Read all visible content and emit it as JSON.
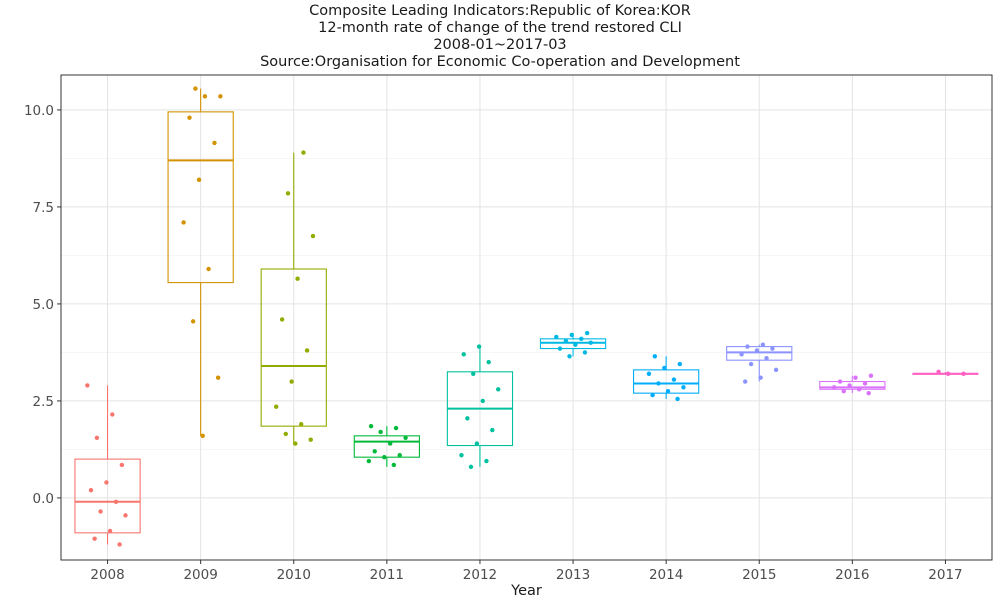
{
  "chart_data": {
    "type": "box",
    "title_lines": [
      "Composite Leading Indicators:Republic of Korea:KOR",
      "12-month rate of change of the trend restored CLI",
      "2008-01~2017-03",
      "Source:Organisation for Economic Co-operation and Development"
    ],
    "xlabel": "Year",
    "ylabel": "",
    "ylim": [
      -1.6,
      10.9
    ],
    "yticks": [
      0,
      2.5,
      5,
      7.5,
      10
    ],
    "ytick_labels": [
      "0.0",
      "2.5",
      "5.0",
      "7.5",
      "10.0"
    ],
    "grid": true,
    "categories": [
      "2008",
      "2009",
      "2010",
      "2011",
      "2012",
      "2013",
      "2014",
      "2015",
      "2016",
      "2017"
    ],
    "colors": [
      "#F8766D",
      "#D39200",
      "#93AA00",
      "#00BA38",
      "#00C19F",
      "#00B9E3",
      "#00ADFA",
      "#8B93FF",
      "#DB72FB",
      "#FF61C3"
    ],
    "boxes": [
      {
        "category": "2008",
        "q1": -0.9,
        "median": -0.1,
        "q3": 1.0,
        "whisker_low": -1.2,
        "whisker_high": 2.9,
        "points": [
          2.9,
          2.15,
          1.55,
          0.85,
          0.4,
          0.2,
          -0.1,
          -0.35,
          -0.45,
          -0.85,
          -1.05,
          -1.2
        ]
      },
      {
        "category": "2009",
        "q1": 5.55,
        "median": 8.7,
        "q3": 9.95,
        "whisker_low": 1.6,
        "whisker_high": 10.55,
        "points": [
          10.55,
          10.35,
          10.35,
          9.8,
          9.15,
          8.2,
          7.1,
          5.9,
          4.55,
          3.1,
          1.6
        ]
      },
      {
        "category": "2010",
        "q1": 1.85,
        "median": 3.4,
        "q3": 5.9,
        "whisker_low": 1.4,
        "whisker_high": 8.9,
        "points": [
          8.9,
          7.85,
          6.75,
          5.65,
          4.6,
          3.8,
          3.0,
          2.35,
          1.9,
          1.65,
          1.5,
          1.4
        ]
      },
      {
        "category": "2011",
        "q1": 1.05,
        "median": 1.45,
        "q3": 1.6,
        "whisker_low": 0.8,
        "whisker_high": 1.85,
        "points": [
          1.85,
          1.8,
          1.7,
          1.55,
          1.4,
          1.2,
          1.1,
          1.05,
          0.95,
          0.85
        ]
      },
      {
        "category": "2012",
        "q1": 1.35,
        "median": 2.3,
        "q3": 3.25,
        "whisker_low": 0.8,
        "whisker_high": 3.9,
        "points": [
          3.9,
          3.7,
          3.5,
          3.2,
          2.8,
          2.5,
          2.05,
          1.75,
          1.4,
          1.1,
          0.95,
          0.8
        ]
      },
      {
        "category": "2013",
        "q1": 3.85,
        "median": 4.0,
        "q3": 4.1,
        "whisker_low": 3.65,
        "whisker_high": 4.25,
        "points": [
          4.25,
          4.2,
          4.15,
          4.1,
          4.05,
          4.0,
          3.95,
          3.85,
          3.75,
          3.65
        ]
      },
      {
        "category": "2014",
        "q1": 2.7,
        "median": 2.95,
        "q3": 3.3,
        "whisker_low": 2.55,
        "whisker_high": 3.65,
        "points": [
          3.65,
          3.45,
          3.35,
          3.2,
          3.05,
          2.95,
          2.85,
          2.75,
          2.65,
          2.55
        ]
      },
      {
        "category": "2015",
        "q1": 3.55,
        "median": 3.75,
        "q3": 3.9,
        "whisker_low": 3.0,
        "whisker_high": 3.95,
        "points": [
          3.95,
          3.9,
          3.85,
          3.8,
          3.7,
          3.6,
          3.45,
          3.3,
          3.1,
          3.0
        ]
      },
      {
        "category": "2016",
        "q1": 2.8,
        "median": 2.85,
        "q3": 3.0,
        "whisker_low": 2.7,
        "whisker_high": 3.15,
        "points": [
          3.15,
          3.1,
          3.0,
          2.95,
          2.9,
          2.85,
          2.8,
          2.75,
          2.7
        ]
      },
      {
        "category": "2017",
        "q1": 3.2,
        "median": 3.2,
        "q3": 3.2,
        "whisker_low": 3.2,
        "whisker_high": 3.25,
        "points": [
          3.25,
          3.2,
          3.2
        ]
      }
    ]
  }
}
